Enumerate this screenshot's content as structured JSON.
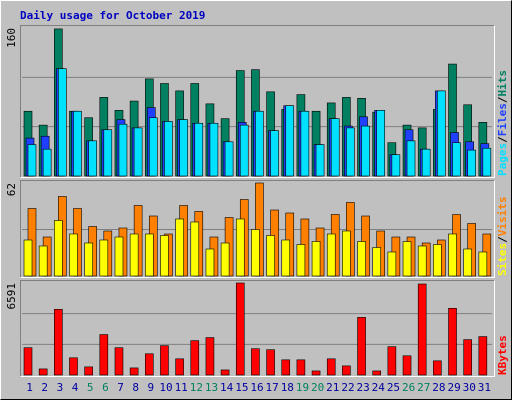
{
  "chart_data": [
    {
      "type": "bar",
      "title": "Daily usage for October 2019",
      "ylim": [
        0,
        160
      ],
      "yticks": [
        160
      ],
      "grid_divisions": 3,
      "legend_separator": "/",
      "series": [
        {
          "name": "Hits",
          "color": "#008060",
          "values": [
            70,
            55,
            159,
            70,
            63,
            85,
            71,
            81,
            105,
            100,
            92,
            100,
            78,
            62,
            114,
            115,
            91,
            72,
            88,
            70,
            79,
            85,
            84,
            69,
            36,
            55,
            52,
            72,
            121,
            77,
            58
          ]
        },
        {
          "name": "Files",
          "color": "#2040ff",
          "values": [
            41,
            43,
            116,
            70,
            38,
            50,
            61,
            52,
            74,
            59,
            61,
            57,
            57,
            37,
            58,
            70,
            49,
            76,
            70,
            34,
            62,
            54,
            64,
            71,
            23,
            50,
            29,
            92,
            47,
            37,
            35
          ]
        },
        {
          "name": "Pages",
          "color": "#00e0ff",
          "values": [
            34,
            29,
            116,
            70,
            38,
            50,
            56,
            52,
            63,
            59,
            61,
            57,
            57,
            37,
            55,
            70,
            49,
            76,
            70,
            34,
            62,
            52,
            54,
            71,
            23,
            38,
            29,
            92,
            36,
            28,
            30
          ]
        }
      ]
    },
    {
      "type": "bar",
      "ylim": [
        0,
        62
      ],
      "yticks": [
        62
      ],
      "grid_divisions": 2,
      "legend_separator": "/",
      "series": [
        {
          "name": "Visits",
          "color": "#ff8000",
          "values": [
            45,
            26,
            53,
            45,
            33,
            30,
            32,
            47,
            40,
            28,
            47,
            43,
            26,
            39,
            51,
            62,
            44,
            42,
            38,
            32,
            41,
            49,
            40,
            30,
            26,
            26,
            22,
            24,
            41,
            35,
            28
          ]
        },
        {
          "name": "Sites",
          "color": "#ffff00",
          "values": [
            24,
            20,
            37,
            28,
            22,
            24,
            26,
            28,
            28,
            27,
            38,
            36,
            18,
            22,
            38,
            31,
            27,
            24,
            21,
            23,
            28,
            30,
            23,
            19,
            16,
            23,
            20,
            21,
            28,
            18,
            16
          ]
        }
      ]
    },
    {
      "type": "bar",
      "ylim": [
        0,
        6591
      ],
      "yticks": [
        6591
      ],
      "grid_divisions": 3,
      "categories": [
        "1",
        "2",
        "3",
        "4",
        "5",
        "6",
        "7",
        "8",
        "9",
        "10",
        "11",
        "12",
        "13",
        "14",
        "15",
        "16",
        "17",
        "18",
        "19",
        "20",
        "21",
        "22",
        "23",
        "24",
        "25",
        "26",
        "27",
        "28",
        "29",
        "30",
        "31"
      ],
      "category_colors": [
        "#0000a0",
        "#0000a0",
        "#0000a0",
        "#0000a0",
        "#008060",
        "#008060",
        "#0000a0",
        "#0000a0",
        "#0000a0",
        "#0000a0",
        "#0000a0",
        "#008060",
        "#008060",
        "#0000a0",
        "#0000a0",
        "#0000a0",
        "#0000a0",
        "#0000a0",
        "#008060",
        "#008060",
        "#0000a0",
        "#0000a0",
        "#0000a0",
        "#0000a0",
        "#0000a0",
        "#008060",
        "#008060",
        "#0000a0",
        "#0000a0",
        "#0000a0",
        "#0000a0"
      ],
      "series": [
        {
          "name": "KBytes",
          "color": "#ff0000",
          "values": [
            1955,
            435,
            4707,
            1231,
            580,
            2897,
            1955,
            507,
            1521,
            2100,
            1159,
            2462,
            2680,
            362,
            6591,
            1883,
            1811,
            1086,
            1086,
            290,
            1159,
            652,
            4128,
            290,
            2028,
            1376,
            6519,
            1014,
            4780,
            2535,
            2752
          ]
        }
      ]
    }
  ]
}
